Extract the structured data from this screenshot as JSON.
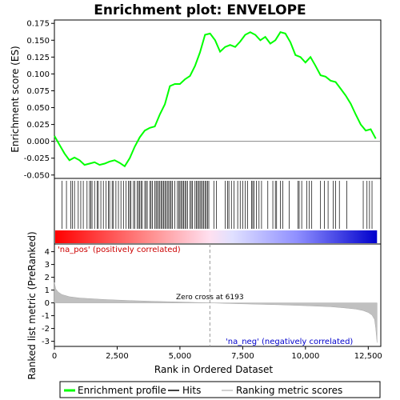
{
  "chart_data": {
    "type": "line",
    "title": "Enrichment plot: ENVELOPE",
    "xlabel": "Rank in Ordered Dataset",
    "ylabel_top": "Enrichment score (ES)",
    "ylabel_bottom": "Ranked list metric (PreRanked)",
    "xlim": [
      0,
      13000
    ],
    "x_ticks": [
      0,
      2500,
      5000,
      7500,
      10000,
      12500
    ],
    "x_tick_labels": [
      "0",
      "2,500",
      "5,000",
      "7,500",
      "10,000",
      "12,500"
    ],
    "es_ylim": [
      -0.055,
      0.18
    ],
    "es_ticks": [
      -0.05,
      -0.025,
      0.0,
      0.025,
      0.05,
      0.075,
      0.1,
      0.125,
      0.15,
      0.175
    ],
    "es_tick_labels": [
      "-0.050",
      "-0.025",
      "0.000",
      "0.025",
      "0.050",
      "0.075",
      "0.100",
      "0.125",
      "0.150",
      "0.175"
    ],
    "metric_ylim": [
      -3.4,
      4.6
    ],
    "metric_ticks": [
      4,
      3,
      2,
      1,
      0,
      -1,
      -2,
      -3
    ],
    "metric_tick_labels": [
      "4",
      "3",
      "2",
      "1",
      "0",
      "-1",
      "-2",
      "-3"
    ],
    "series": [
      {
        "name": "Enrichment profile",
        "color": "#00ff00",
        "x": [
          0,
          200,
          400,
          600,
          800,
          1000,
          1200,
          1400,
          1600,
          1800,
          2000,
          2200,
          2400,
          2600,
          2800,
          3000,
          3200,
          3400,
          3600,
          3800,
          4000,
          4200,
          4400,
          4600,
          4800,
          5000,
          5200,
          5400,
          5600,
          5800,
          6000,
          6200,
          6400,
          6600,
          6800,
          7000,
          7200,
          7400,
          7600,
          7800,
          8000,
          8200,
          8400,
          8600,
          8800,
          9000,
          9200,
          9400,
          9600,
          9800,
          10000,
          10200,
          10400,
          10600,
          10800,
          11000,
          11200,
          11400,
          11600,
          11800,
          12000,
          12200,
          12400,
          12600,
          12800
        ],
        "y": [
          0.008,
          -0.005,
          -0.018,
          -0.028,
          -0.024,
          -0.028,
          -0.035,
          -0.033,
          -0.031,
          -0.035,
          -0.033,
          -0.03,
          -0.028,
          -0.032,
          -0.037,
          -0.025,
          -0.008,
          0.006,
          0.016,
          0.02,
          0.022,
          0.04,
          0.055,
          0.082,
          0.085,
          0.085,
          0.092,
          0.097,
          0.112,
          0.132,
          0.158,
          0.16,
          0.15,
          0.133,
          0.14,
          0.143,
          0.14,
          0.148,
          0.158,
          0.162,
          0.158,
          0.15,
          0.155,
          0.145,
          0.15,
          0.162,
          0.16,
          0.147,
          0.128,
          0.125,
          0.117,
          0.125,
          0.112,
          0.098,
          0.096,
          0.09,
          0.088,
          0.078,
          0.068,
          0.056,
          0.04,
          0.025,
          0.016,
          0.018,
          0.004
        ]
      },
      {
        "name": "Hits",
        "color": "#000000"
      },
      {
        "name": "Ranking metric scores",
        "color": "#c0c0c0"
      }
    ],
    "hits": [
      300,
      480,
      650,
      720,
      800,
      950,
      1050,
      1150,
      1300,
      1400,
      1450,
      1500,
      1600,
      1700,
      1750,
      1850,
      1950,
      2050,
      2150,
      2200,
      2300,
      2350,
      2450,
      2550,
      2650,
      2750,
      2850,
      2950,
      3000,
      3050,
      3150,
      3200,
      3300,
      3350,
      3400,
      3450,
      3500,
      3600,
      3650,
      3700,
      3800,
      3850,
      3900,
      4000,
      4050,
      4100,
      4150,
      4200,
      4250,
      4300,
      4350,
      4400,
      4450,
      4500,
      4550,
      4600,
      4650,
      4700,
      4800,
      4900,
      4950,
      5000,
      5050,
      5100,
      5150,
      5200,
      5250,
      5300,
      5400,
      5450,
      5500,
      5600,
      5650,
      5700,
      5750,
      5800,
      5850,
      5900,
      5950,
      6000,
      6050,
      6100,
      6150,
      6350,
      6450,
      6800,
      6900,
      6950,
      7050,
      7150,
      7300,
      7400,
      7500,
      7600,
      7700,
      7850,
      7900,
      7950,
      8050,
      8150,
      8250,
      8500,
      8700,
      8800,
      8850,
      9000,
      9100,
      9350,
      9700,
      9750,
      9850,
      10050,
      10150,
      10250,
      10600,
      10750,
      10900,
      11100,
      11200,
      11350,
      11650,
      12300,
      12450,
      12550,
      12650
    ],
    "metric_curve": {
      "x": [
        0,
        50,
        150,
        300,
        600,
        1000,
        2000,
        3000,
        4000,
        5000,
        6193,
        7000,
        8000,
        9000,
        10000,
        11000,
        11500,
        12000,
        12300,
        12500,
        12650,
        12750,
        12800,
        12850
      ],
      "y": [
        1.6,
        1.1,
        0.85,
        0.65,
        0.48,
        0.38,
        0.26,
        0.18,
        0.12,
        0.07,
        0.0,
        -0.05,
        -0.1,
        -0.15,
        -0.22,
        -0.3,
        -0.38,
        -0.48,
        -0.6,
        -0.75,
        -0.95,
        -1.3,
        -2.0,
        -3.1
      ]
    },
    "zero_cross_label": "Zero cross at 6193",
    "zero_cross": 6193,
    "pos_label": "'na_pos' (positively correlated)",
    "neg_label": "'na_neg' (negatively correlated)",
    "legend": {
      "placement": "bottom",
      "entries": [
        "Enrichment profile",
        "Hits",
        "Ranking metric scores"
      ]
    }
  }
}
